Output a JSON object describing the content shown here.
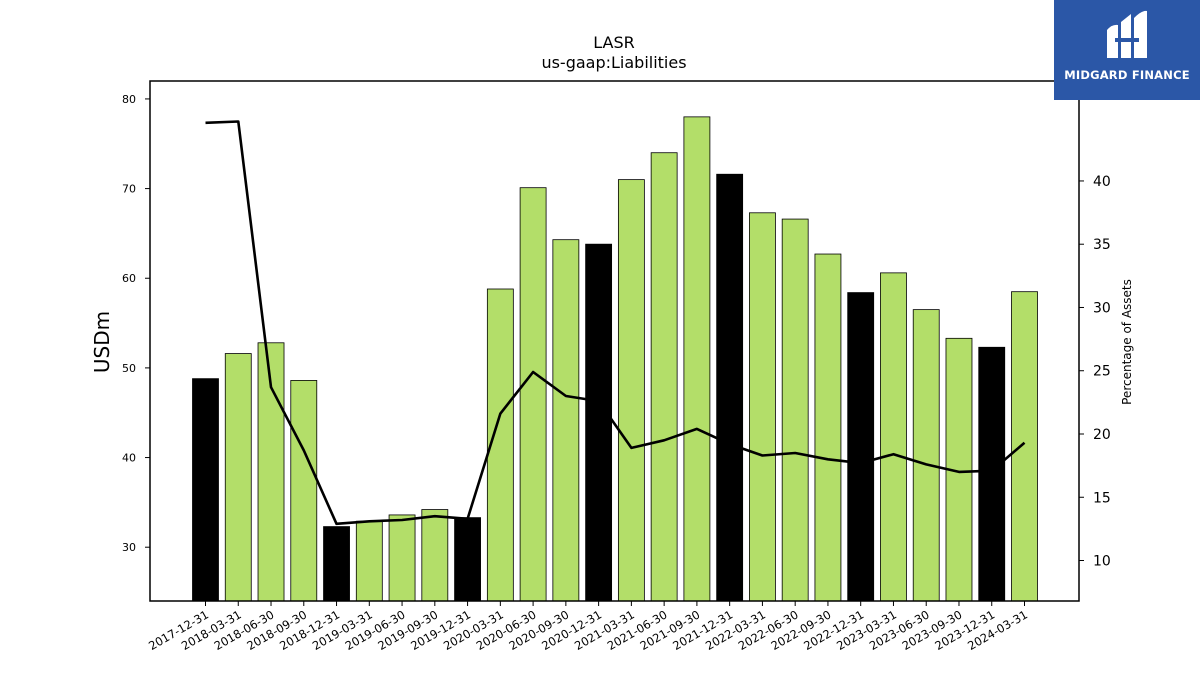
{
  "brand": {
    "name": "MIDGARD FINANCE",
    "background": "#2b57a7"
  },
  "chart_data": {
    "type": "bar",
    "title": "LASR",
    "subtitle": "us-gaap:Liabilities",
    "ylabel": "USDm",
    "y2label": "Percentage of Assets",
    "ylim": [
      24,
      82
    ],
    "y2lim": [
      6.8,
      47.9
    ],
    "yticks": [
      30,
      40,
      50,
      60,
      70,
      80
    ],
    "y2ticks": [
      10,
      15,
      20,
      25,
      30,
      35,
      40
    ],
    "categories": [
      "2017-12-31",
      "2018-03-31",
      "2018-06-30",
      "2018-09-30",
      "2018-12-31",
      "2019-03-31",
      "2019-06-30",
      "2019-09-30",
      "2019-12-31",
      "2020-03-31",
      "2020-06-30",
      "2020-09-30",
      "2020-12-31",
      "2021-03-31",
      "2021-06-30",
      "2021-09-30",
      "2021-12-31",
      "2022-03-31",
      "2022-06-30",
      "2022-09-30",
      "2022-12-31",
      "2023-03-31",
      "2023-06-30",
      "2023-09-30",
      "2023-12-31",
      "2024-03-31"
    ],
    "series": [
      {
        "kind": "bar",
        "values": [
          48.8,
          51.6,
          52.8,
          48.6,
          32.3,
          32.9,
          33.6,
          34.2,
          33.3,
          58.8,
          70.1,
          64.3,
          63.8,
          71.0,
          74.0,
          78.0,
          71.6,
          67.3,
          66.6,
          62.7,
          58.4,
          60.6,
          56.5,
          53.3,
          52.3,
          58.5
        ],
        "colors": [
          "#000000",
          "#b3de69",
          "#b3de69",
          "#b3de69",
          "#000000",
          "#b3de69",
          "#b3de69",
          "#b3de69",
          "#000000",
          "#b3de69",
          "#b3de69",
          "#b3de69",
          "#000000",
          "#b3de69",
          "#b3de69",
          "#b3de69",
          "#000000",
          "#b3de69",
          "#b3de69",
          "#b3de69",
          "#000000",
          "#b3de69",
          "#b3de69",
          "#b3de69",
          "#000000",
          "#b3de69"
        ]
      },
      {
        "kind": "line",
        "axis": "right",
        "color": "#000000",
        "values": [
          44.6,
          44.7,
          23.7,
          18.7,
          12.9,
          13.1,
          13.2,
          13.5,
          13.3,
          21.6,
          24.9,
          23.0,
          22.6,
          18.9,
          19.5,
          20.4,
          19.2,
          18.3,
          18.5,
          18.0,
          17.7,
          18.4,
          17.6,
          17.0,
          17.1,
          19.3
        ]
      }
    ],
    "grid": false,
    "legend": "none"
  }
}
